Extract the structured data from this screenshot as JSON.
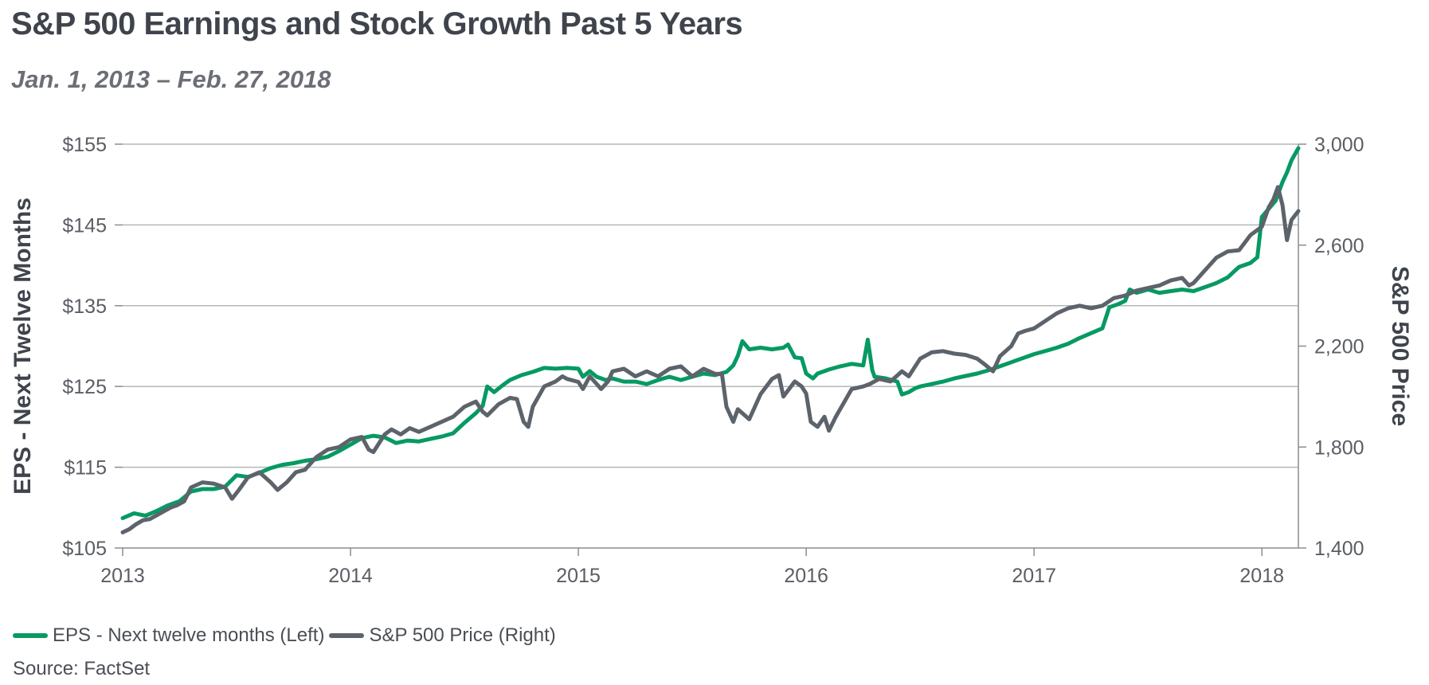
{
  "colors": {
    "eps": "#069a63",
    "price": "#5d636b",
    "grid": "#b5b7ba",
    "axis": "#8a8d92",
    "text": "#5a5e64",
    "axis_title": "#3f444c"
  },
  "chart_data": {
    "type": "line",
    "title": "S&P 500 Earnings and Stock Growth Past 5 Years",
    "subtitle": "Jan. 1, 2013 – Feb. 27, 2018",
    "ylabel_left": "EPS - Next Twelve Months",
    "ylabel_right": "S&P 500 Price",
    "xlim": [
      2013,
      2018.16
    ],
    "ylim_left": [
      105,
      155
    ],
    "ylim_right": [
      1400,
      3000
    ],
    "x_ticks": [
      {
        "value": 2013,
        "label": "2013"
      },
      {
        "value": 2014,
        "label": "2014"
      },
      {
        "value": 2015,
        "label": "2015"
      },
      {
        "value": 2016,
        "label": "2016"
      },
      {
        "value": 2017,
        "label": "2017"
      },
      {
        "value": 2018,
        "label": "2018"
      }
    ],
    "y_ticks_left": [
      {
        "value": 105,
        "label": "$105"
      },
      {
        "value": 115,
        "label": "$115"
      },
      {
        "value": 125,
        "label": "$125"
      },
      {
        "value": 135,
        "label": "$135"
      },
      {
        "value": 145,
        "label": "$145"
      },
      {
        "value": 155,
        "label": "$155"
      }
    ],
    "y_ticks_right": [
      {
        "value": 1400,
        "label": "1,400"
      },
      {
        "value": 1800,
        "label": "1,800"
      },
      {
        "value": 2200,
        "label": "2,200"
      },
      {
        "value": 2600,
        "label": "2,600"
      },
      {
        "value": 3000,
        "label": "3,000"
      }
    ],
    "grid": true,
    "legend_position": "bottom-left",
    "series": [
      {
        "name": "EPS - Next twelve months (Left)",
        "axis": "left",
        "color": "#069a63",
        "points": [
          [
            2013.0,
            108.7
          ],
          [
            2013.05,
            109.3
          ],
          [
            2013.1,
            109.0
          ],
          [
            2013.15,
            109.6
          ],
          [
            2013.2,
            110.3
          ],
          [
            2013.25,
            110.8
          ],
          [
            2013.3,
            112.0
          ],
          [
            2013.35,
            112.3
          ],
          [
            2013.4,
            112.3
          ],
          [
            2013.45,
            112.6
          ],
          [
            2013.5,
            114.0
          ],
          [
            2013.55,
            113.8
          ],
          [
            2013.6,
            114.3
          ],
          [
            2013.65,
            114.9
          ],
          [
            2013.7,
            115.3
          ],
          [
            2013.75,
            115.5
          ],
          [
            2013.8,
            115.8
          ],
          [
            2013.85,
            116.0
          ],
          [
            2013.9,
            116.3
          ],
          [
            2013.95,
            117.0
          ],
          [
            2014.0,
            117.8
          ],
          [
            2014.05,
            118.6
          ],
          [
            2014.1,
            118.9
          ],
          [
            2014.15,
            118.7
          ],
          [
            2014.2,
            118.0
          ],
          [
            2014.25,
            118.3
          ],
          [
            2014.3,
            118.2
          ],
          [
            2014.35,
            118.5
          ],
          [
            2014.4,
            118.8
          ],
          [
            2014.45,
            119.2
          ],
          [
            2014.5,
            120.5
          ],
          [
            2014.55,
            121.7
          ],
          [
            2014.58,
            122.6
          ],
          [
            2014.6,
            125.0
          ],
          [
            2014.63,
            124.3
          ],
          [
            2014.67,
            125.2
          ],
          [
            2014.7,
            125.8
          ],
          [
            2014.75,
            126.4
          ],
          [
            2014.8,
            126.8
          ],
          [
            2014.85,
            127.3
          ],
          [
            2014.9,
            127.2
          ],
          [
            2014.95,
            127.3
          ],
          [
            2015.0,
            127.2
          ],
          [
            2015.02,
            126.2
          ],
          [
            2015.05,
            126.9
          ],
          [
            2015.08,
            126.2
          ],
          [
            2015.12,
            125.8
          ],
          [
            2015.15,
            126.0
          ],
          [
            2015.2,
            125.6
          ],
          [
            2015.25,
            125.6
          ],
          [
            2015.3,
            125.3
          ],
          [
            2015.35,
            125.8
          ],
          [
            2015.4,
            126.2
          ],
          [
            2015.45,
            125.8
          ],
          [
            2015.5,
            126.2
          ],
          [
            2015.55,
            126.6
          ],
          [
            2015.6,
            126.4
          ],
          [
            2015.65,
            126.8
          ],
          [
            2015.68,
            127.6
          ],
          [
            2015.7,
            128.8
          ],
          [
            2015.72,
            130.6
          ],
          [
            2015.75,
            129.6
          ],
          [
            2015.8,
            129.8
          ],
          [
            2015.85,
            129.6
          ],
          [
            2015.9,
            129.8
          ],
          [
            2015.92,
            130.2
          ],
          [
            2015.95,
            128.6
          ],
          [
            2015.98,
            128.5
          ],
          [
            2016.0,
            126.6
          ],
          [
            2016.03,
            126.0
          ],
          [
            2016.05,
            126.6
          ],
          [
            2016.1,
            127.1
          ],
          [
            2016.15,
            127.5
          ],
          [
            2016.2,
            127.8
          ],
          [
            2016.25,
            127.6
          ],
          [
            2016.27,
            130.8
          ],
          [
            2016.29,
            127.0
          ],
          [
            2016.3,
            126.2
          ],
          [
            2016.35,
            126.0
          ],
          [
            2016.4,
            125.6
          ],
          [
            2016.42,
            124.0
          ],
          [
            2016.45,
            124.3
          ],
          [
            2016.48,
            124.8
          ],
          [
            2016.5,
            125.0
          ],
          [
            2016.55,
            125.3
          ],
          [
            2016.6,
            125.6
          ],
          [
            2016.65,
            126.0
          ],
          [
            2016.7,
            126.3
          ],
          [
            2016.75,
            126.6
          ],
          [
            2016.8,
            127.0
          ],
          [
            2016.85,
            127.5
          ],
          [
            2016.9,
            128.0
          ],
          [
            2016.95,
            128.5
          ],
          [
            2017.0,
            129.0
          ],
          [
            2017.05,
            129.4
          ],
          [
            2017.1,
            129.8
          ],
          [
            2017.15,
            130.3
          ],
          [
            2017.2,
            131.0
          ],
          [
            2017.25,
            131.6
          ],
          [
            2017.3,
            132.2
          ],
          [
            2017.33,
            134.8
          ],
          [
            2017.37,
            135.2
          ],
          [
            2017.4,
            135.6
          ],
          [
            2017.42,
            137.0
          ],
          [
            2017.45,
            136.6
          ],
          [
            2017.5,
            137.0
          ],
          [
            2017.55,
            136.6
          ],
          [
            2017.6,
            136.8
          ],
          [
            2017.65,
            137.0
          ],
          [
            2017.7,
            136.8
          ],
          [
            2017.75,
            137.3
          ],
          [
            2017.8,
            137.8
          ],
          [
            2017.85,
            138.5
          ],
          [
            2017.88,
            139.3
          ],
          [
            2017.9,
            139.8
          ],
          [
            2017.95,
            140.3
          ],
          [
            2017.98,
            141.0
          ],
          [
            2018.0,
            146.0
          ],
          [
            2018.03,
            147.0
          ],
          [
            2018.06,
            148.0
          ],
          [
            2018.09,
            150.3
          ],
          [
            2018.11,
            151.5
          ],
          [
            2018.13,
            153.0
          ],
          [
            2018.15,
            154.0
          ],
          [
            2018.16,
            154.5
          ]
        ]
      },
      {
        "name": "S&P 500 Price (Right)",
        "axis": "right",
        "color": "#5d636b",
        "points": [
          [
            2013.0,
            1462
          ],
          [
            2013.03,
            1475
          ],
          [
            2013.06,
            1495
          ],
          [
            2013.09,
            1510
          ],
          [
            2013.12,
            1515
          ],
          [
            2013.15,
            1530
          ],
          [
            2013.18,
            1545
          ],
          [
            2013.21,
            1560
          ],
          [
            2013.24,
            1570
          ],
          [
            2013.27,
            1585
          ],
          [
            2013.3,
            1640
          ],
          [
            2013.35,
            1660
          ],
          [
            2013.4,
            1655
          ],
          [
            2013.45,
            1640
          ],
          [
            2013.48,
            1595
          ],
          [
            2013.51,
            1630
          ],
          [
            2013.55,
            1680
          ],
          [
            2013.6,
            1700
          ],
          [
            2013.65,
            1660
          ],
          [
            2013.68,
            1630
          ],
          [
            2013.72,
            1660
          ],
          [
            2013.76,
            1700
          ],
          [
            2013.8,
            1710
          ],
          [
            2013.85,
            1760
          ],
          [
            2013.9,
            1790
          ],
          [
            2013.95,
            1800
          ],
          [
            2014.0,
            1830
          ],
          [
            2014.05,
            1840
          ],
          [
            2014.08,
            1790
          ],
          [
            2014.1,
            1780
          ],
          [
            2014.15,
            1850
          ],
          [
            2014.18,
            1870
          ],
          [
            2014.22,
            1850
          ],
          [
            2014.26,
            1875
          ],
          [
            2014.3,
            1860
          ],
          [
            2014.35,
            1880
          ],
          [
            2014.4,
            1900
          ],
          [
            2014.45,
            1920
          ],
          [
            2014.5,
            1960
          ],
          [
            2014.55,
            1980
          ],
          [
            2014.58,
            1940
          ],
          [
            2014.6,
            1925
          ],
          [
            2014.65,
            1970
          ],
          [
            2014.7,
            1995
          ],
          [
            2014.73,
            1990
          ],
          [
            2014.76,
            1900
          ],
          [
            2014.78,
            1880
          ],
          [
            2014.8,
            1960
          ],
          [
            2014.85,
            2040
          ],
          [
            2014.9,
            2060
          ],
          [
            2014.93,
            2080
          ],
          [
            2014.95,
            2070
          ],
          [
            2015.0,
            2058
          ],
          [
            2015.02,
            2030
          ],
          [
            2015.05,
            2080
          ],
          [
            2015.08,
            2050
          ],
          [
            2015.1,
            2030
          ],
          [
            2015.13,
            2060
          ],
          [
            2015.15,
            2100
          ],
          [
            2015.2,
            2110
          ],
          [
            2015.25,
            2080
          ],
          [
            2015.3,
            2100
          ],
          [
            2015.35,
            2080
          ],
          [
            2015.4,
            2110
          ],
          [
            2015.45,
            2120
          ],
          [
            2015.5,
            2080
          ],
          [
            2015.55,
            2110
          ],
          [
            2015.6,
            2090
          ],
          [
            2015.63,
            2090
          ],
          [
            2015.65,
            1960
          ],
          [
            2015.68,
            1900
          ],
          [
            2015.7,
            1950
          ],
          [
            2015.75,
            1910
          ],
          [
            2015.8,
            2010
          ],
          [
            2015.85,
            2070
          ],
          [
            2015.88,
            2085
          ],
          [
            2015.9,
            2000
          ],
          [
            2015.95,
            2060
          ],
          [
            2015.98,
            2040
          ],
          [
            2016.0,
            2012
          ],
          [
            2016.02,
            1900
          ],
          [
            2016.05,
            1880
          ],
          [
            2016.08,
            1920
          ],
          [
            2016.1,
            1865
          ],
          [
            2016.13,
            1920
          ],
          [
            2016.2,
            2030
          ],
          [
            2016.25,
            2040
          ],
          [
            2016.28,
            2050
          ],
          [
            2016.32,
            2070
          ],
          [
            2016.37,
            2060
          ],
          [
            2016.42,
            2100
          ],
          [
            2016.45,
            2080
          ],
          [
            2016.5,
            2150
          ],
          [
            2016.55,
            2175
          ],
          [
            2016.6,
            2180
          ],
          [
            2016.65,
            2170
          ],
          [
            2016.7,
            2165
          ],
          [
            2016.75,
            2150
          ],
          [
            2016.78,
            2130
          ],
          [
            2016.82,
            2100
          ],
          [
            2016.85,
            2160
          ],
          [
            2016.9,
            2200
          ],
          [
            2016.93,
            2250
          ],
          [
            2016.96,
            2260
          ],
          [
            2017.0,
            2270
          ],
          [
            2017.05,
            2300
          ],
          [
            2017.1,
            2330
          ],
          [
            2017.15,
            2350
          ],
          [
            2017.2,
            2360
          ],
          [
            2017.25,
            2350
          ],
          [
            2017.3,
            2360
          ],
          [
            2017.35,
            2390
          ],
          [
            2017.4,
            2400
          ],
          [
            2017.45,
            2420
          ],
          [
            2017.5,
            2430
          ],
          [
            2017.55,
            2440
          ],
          [
            2017.6,
            2460
          ],
          [
            2017.65,
            2470
          ],
          [
            2017.68,
            2440
          ],
          [
            2017.7,
            2450
          ],
          [
            2017.75,
            2500
          ],
          [
            2017.8,
            2550
          ],
          [
            2017.85,
            2575
          ],
          [
            2017.9,
            2580
          ],
          [
            2017.95,
            2640
          ],
          [
            2018.0,
            2673
          ],
          [
            2018.03,
            2750
          ],
          [
            2018.05,
            2780
          ],
          [
            2018.07,
            2830
          ],
          [
            2018.09,
            2760
          ],
          [
            2018.11,
            2620
          ],
          [
            2018.13,
            2700
          ],
          [
            2018.16,
            2735
          ]
        ]
      }
    ]
  },
  "legend": {
    "eps_label": "EPS - Next twelve months (Left)",
    "price_label": "S&P 500 Price (Right)"
  },
  "source": "Source: FactSet"
}
